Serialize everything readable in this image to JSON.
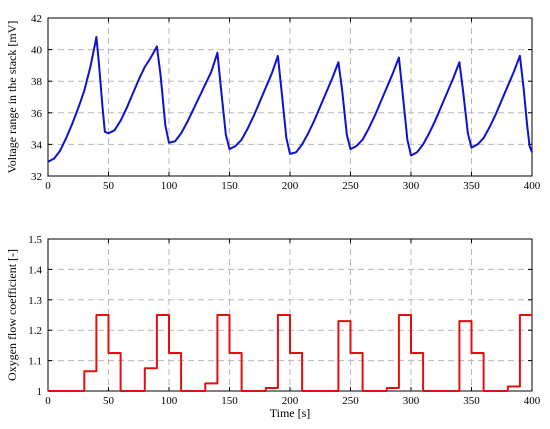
{
  "chart_data": [
    {
      "type": "line",
      "xlabel": "",
      "ylabel": "Voltage range in the stack [mV]",
      "xlim": [
        0,
        400
      ],
      "ylim": [
        32,
        42
      ],
      "xticks": [
        0,
        50,
        100,
        150,
        200,
        250,
        300,
        350,
        400
      ],
      "yticks": [
        32,
        34,
        36,
        38,
        40,
        42
      ],
      "grid": true,
      "colors": {
        "line": "#1010d0"
      },
      "series": [
        {
          "values_xy": [
            [
              0,
              32.9
            ],
            [
              5,
              33.1
            ],
            [
              10,
              33.6
            ],
            [
              15,
              34.4
            ],
            [
              20,
              35.3
            ],
            [
              25,
              36.3
            ],
            [
              30,
              37.4
            ],
            [
              35,
              38.9
            ],
            [
              39,
              40.4
            ],
            [
              40,
              40.8
            ],
            [
              42,
              39.2
            ],
            [
              45,
              36.4
            ],
            [
              47,
              34.8
            ],
            [
              50,
              34.7
            ],
            [
              55,
              34.9
            ],
            [
              60,
              35.5
            ],
            [
              65,
              36.3
            ],
            [
              70,
              37.2
            ],
            [
              75,
              38.1
            ],
            [
              80,
              38.9
            ],
            [
              85,
              39.5
            ],
            [
              90,
              40.2
            ],
            [
              93,
              38.4
            ],
            [
              97,
              35.2
            ],
            [
              100,
              34.1
            ],
            [
              105,
              34.2
            ],
            [
              110,
              34.7
            ],
            [
              115,
              35.4
            ],
            [
              120,
              36.2
            ],
            [
              125,
              37.0
            ],
            [
              130,
              37.8
            ],
            [
              135,
              38.6
            ],
            [
              140,
              39.8
            ],
            [
              143,
              37.5
            ],
            [
              147,
              34.6
            ],
            [
              150,
              33.7
            ],
            [
              155,
              33.9
            ],
            [
              160,
              34.3
            ],
            [
              165,
              35.0
            ],
            [
              170,
              35.8
            ],
            [
              175,
              36.7
            ],
            [
              180,
              37.6
            ],
            [
              185,
              38.5
            ],
            [
              190,
              39.6
            ],
            [
              193,
              37.4
            ],
            [
              197,
              34.4
            ],
            [
              200,
              33.4
            ],
            [
              205,
              33.5
            ],
            [
              210,
              34.0
            ],
            [
              215,
              34.7
            ],
            [
              220,
              35.5
            ],
            [
              225,
              36.4
            ],
            [
              230,
              37.3
            ],
            [
              235,
              38.2
            ],
            [
              240,
              39.2
            ],
            [
              243,
              37.5
            ],
            [
              247,
              34.6
            ],
            [
              250,
              33.7
            ],
            [
              255,
              33.9
            ],
            [
              260,
              34.3
            ],
            [
              265,
              35.0
            ],
            [
              270,
              35.8
            ],
            [
              275,
              36.7
            ],
            [
              280,
              37.6
            ],
            [
              285,
              38.5
            ],
            [
              290,
              39.5
            ],
            [
              293,
              37.3
            ],
            [
              297,
              34.3
            ],
            [
              300,
              33.3
            ],
            [
              305,
              33.5
            ],
            [
              310,
              34.0
            ],
            [
              315,
              34.7
            ],
            [
              320,
              35.5
            ],
            [
              325,
              36.4
            ],
            [
              330,
              37.3
            ],
            [
              335,
              38.2
            ],
            [
              340,
              39.2
            ],
            [
              343,
              37.4
            ],
            [
              347,
              34.7
            ],
            [
              350,
              33.8
            ],
            [
              355,
              34.0
            ],
            [
              360,
              34.4
            ],
            [
              365,
              35.1
            ],
            [
              370,
              35.9
            ],
            [
              375,
              36.8
            ],
            [
              380,
              37.7
            ],
            [
              385,
              38.6
            ],
            [
              390,
              39.6
            ],
            [
              393,
              37.6
            ],
            [
              396,
              35.2
            ],
            [
              398,
              33.9
            ],
            [
              400,
              33.5
            ]
          ]
        }
      ]
    },
    {
      "type": "line",
      "xlabel": "Time [s]",
      "ylabel": "Oxygen flow coefficient [-]",
      "xlim": [
        0,
        400
      ],
      "ylim": [
        1,
        1.5
      ],
      "xticks": [
        0,
        50,
        100,
        150,
        200,
        250,
        300,
        350,
        400
      ],
      "yticks": [
        1,
        1.1,
        1.2,
        1.3,
        1.4,
        1.5
      ],
      "grid": true,
      "colors": {
        "line": "#e01010"
      },
      "series": [
        {
          "values_xy": [
            [
              0,
              1.0
            ],
            [
              30,
              1.0
            ],
            [
              30,
              1.065
            ],
            [
              40,
              1.065
            ],
            [
              40,
              1.25
            ],
            [
              50,
              1.25
            ],
            [
              50,
              1.125
            ],
            [
              60,
              1.125
            ],
            [
              60,
              1.0
            ],
            [
              80,
              1.0
            ],
            [
              80,
              1.075
            ],
            [
              90,
              1.075
            ],
            [
              90,
              1.25
            ],
            [
              100,
              1.25
            ],
            [
              100,
              1.125
            ],
            [
              110,
              1.125
            ],
            [
              110,
              1.0
            ],
            [
              130,
              1.0
            ],
            [
              130,
              1.025
            ],
            [
              140,
              1.025
            ],
            [
              140,
              1.25
            ],
            [
              150,
              1.25
            ],
            [
              150,
              1.125
            ],
            [
              160,
              1.125
            ],
            [
              160,
              1.0
            ],
            [
              180,
              1.0
            ],
            [
              180,
              1.01
            ],
            [
              190,
              1.01
            ],
            [
              190,
              1.25
            ],
            [
              200,
              1.25
            ],
            [
              200,
              1.125
            ],
            [
              210,
              1.125
            ],
            [
              210,
              1.0
            ],
            [
              230,
              1.0
            ],
            [
              230,
              1.0
            ],
            [
              240,
              1.0
            ],
            [
              240,
              1.23
            ],
            [
              250,
              1.23
            ],
            [
              250,
              1.125
            ],
            [
              260,
              1.125
            ],
            [
              260,
              1.0
            ],
            [
              280,
              1.0
            ],
            [
              280,
              1.01
            ],
            [
              290,
              1.01
            ],
            [
              290,
              1.25
            ],
            [
              300,
              1.25
            ],
            [
              300,
              1.125
            ],
            [
              310,
              1.125
            ],
            [
              310,
              1.0
            ],
            [
              330,
              1.0
            ],
            [
              330,
              1.0
            ],
            [
              340,
              1.0
            ],
            [
              340,
              1.23
            ],
            [
              350,
              1.23
            ],
            [
              350,
              1.125
            ],
            [
              360,
              1.125
            ],
            [
              360,
              1.0
            ],
            [
              380,
              1.0
            ],
            [
              380,
              1.015
            ],
            [
              390,
              1.015
            ],
            [
              390,
              1.25
            ],
            [
              400,
              1.25
            ]
          ]
        }
      ]
    }
  ]
}
